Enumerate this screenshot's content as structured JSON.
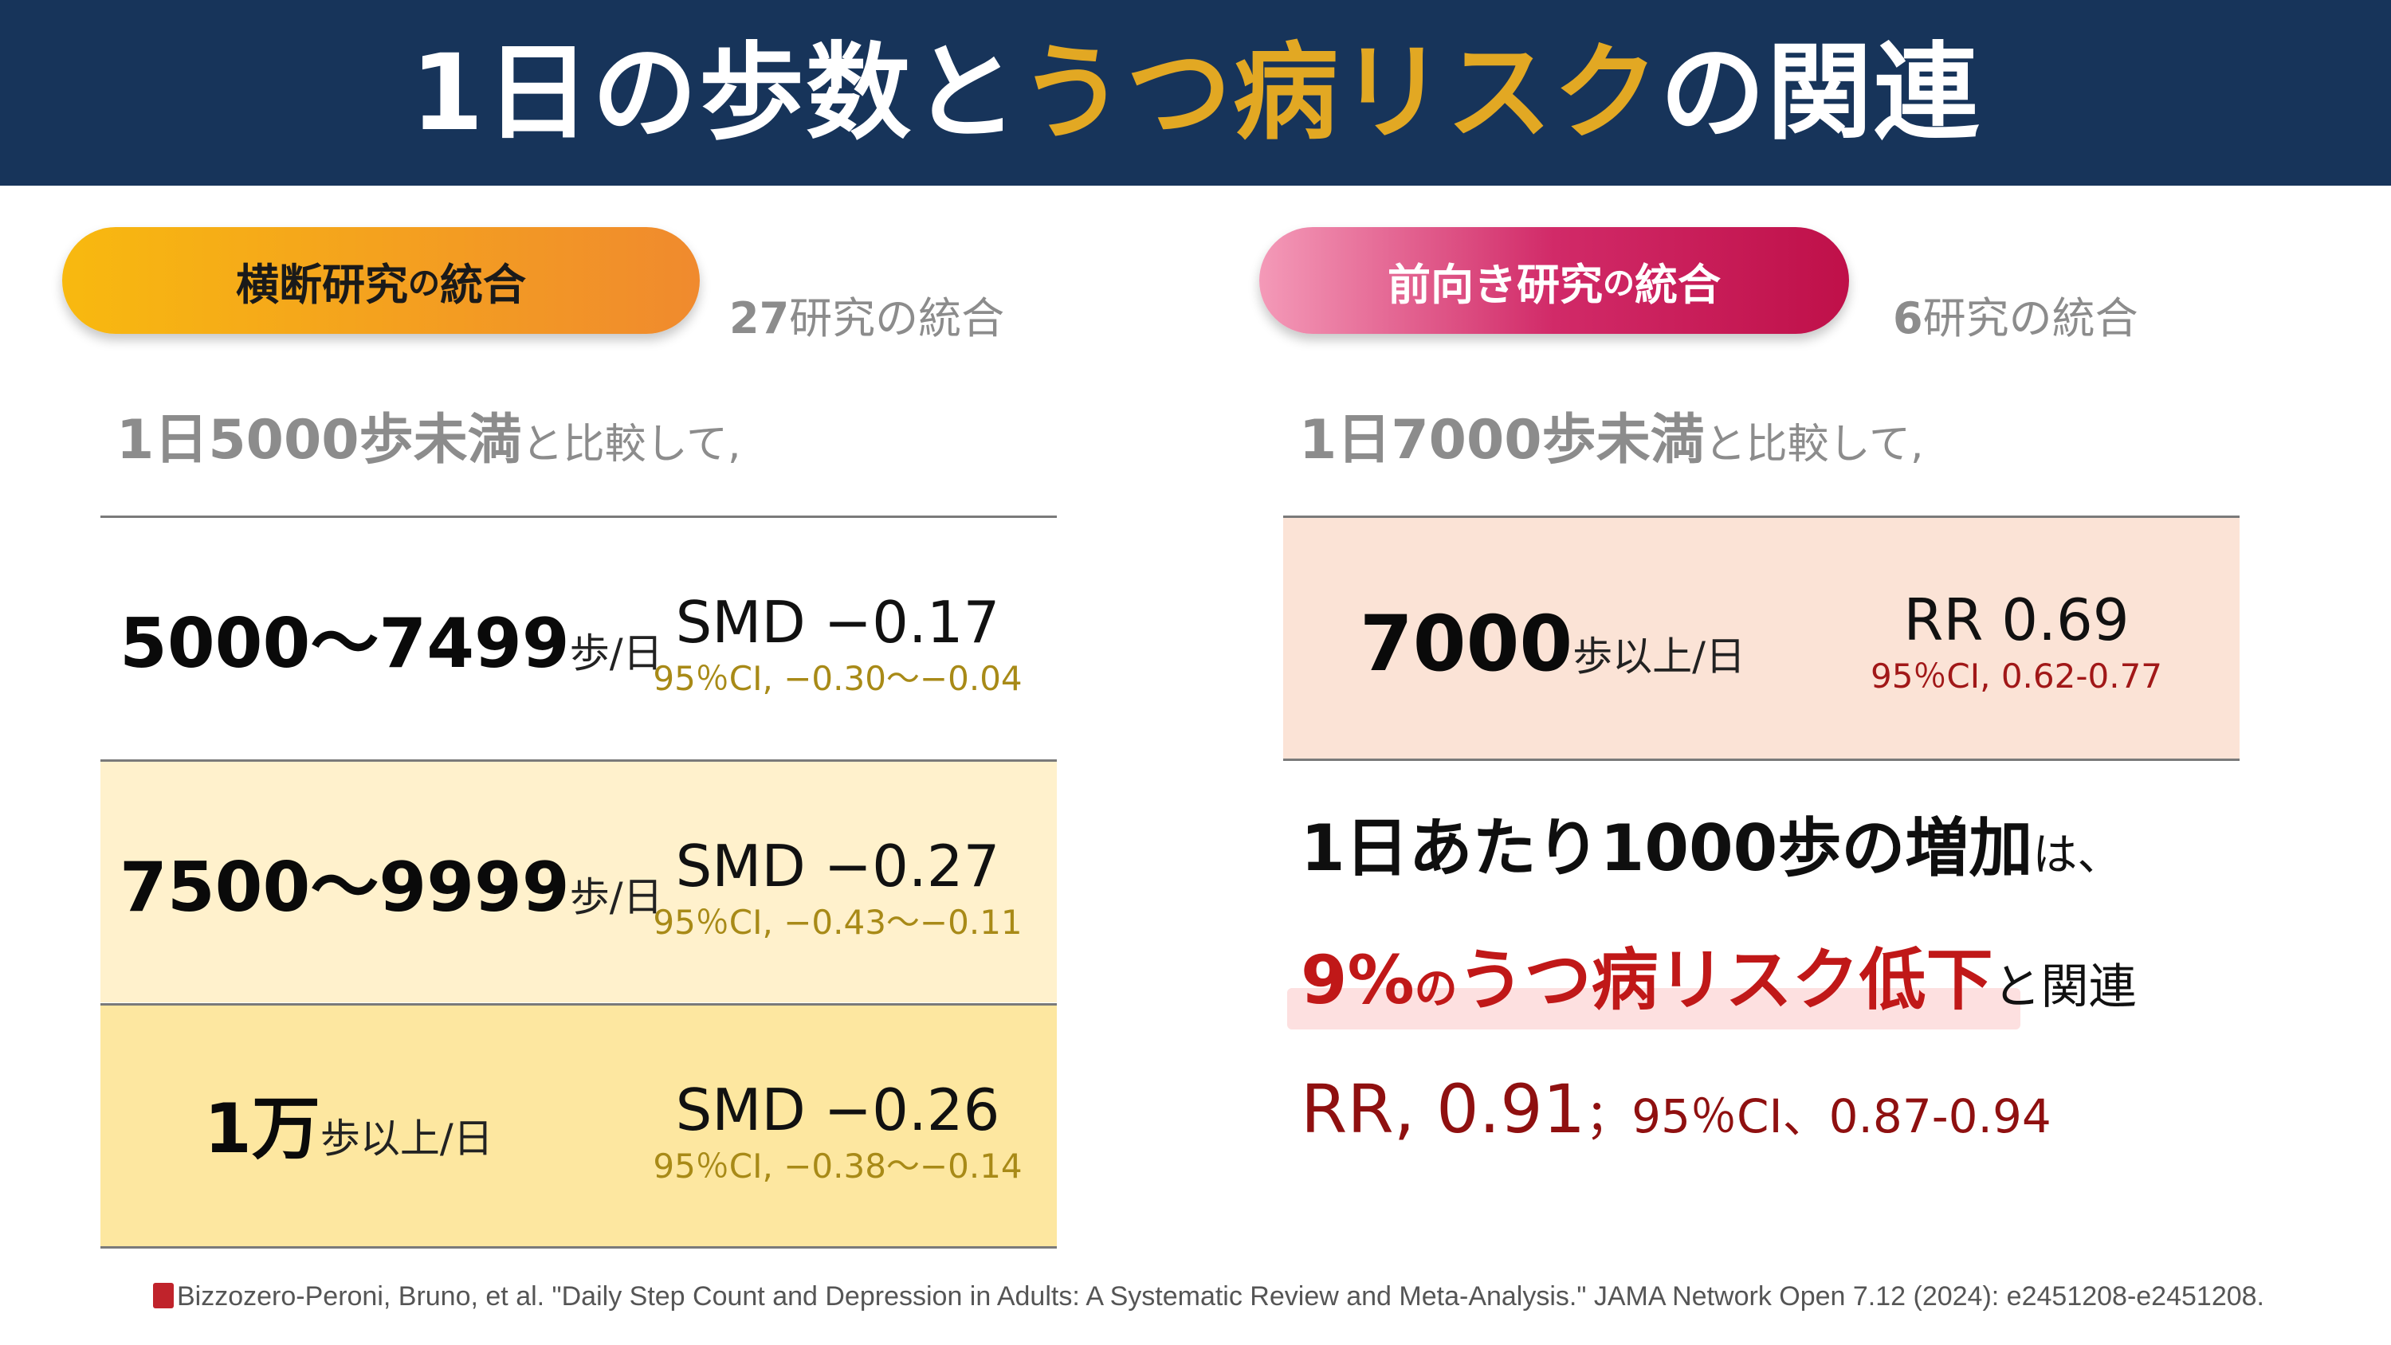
{
  "header": {
    "title_pre": "1日の歩数と",
    "title_highlight": "うつ病リスク",
    "title_post": "の関連",
    "colors": {
      "bg": "#17345a",
      "highlight": "#e2a823"
    }
  },
  "left": {
    "pill_main": "横断研究",
    "pill_small": "の",
    "pill_end": "統合",
    "count_num": "27",
    "count_text": "研究の統合",
    "compare_strong": "1日5000歩未満",
    "compare_weak": "と比較して,",
    "rows": [
      {
        "num": "5000〜7499",
        "unit": "歩/日",
        "value": "SMD −0.17",
        "ci": "95％CI, −0.30〜−0.04"
      },
      {
        "num": "7500〜9999",
        "unit": "歩/日",
        "value": "SMD −0.27",
        "ci": "95％CI, −0.43〜−0.11"
      },
      {
        "num": "1万",
        "unit": "歩以上/日",
        "value": "SMD −0.26",
        "ci": "95％CI, −0.38〜−0.14"
      }
    ]
  },
  "right": {
    "pill_main": "前向き研究",
    "pill_small": "の",
    "pill_end": "統合",
    "count_num": "6",
    "count_text": "研究の統合",
    "compare_strong": "1日7000歩未満",
    "compare_weak": "と比較して,",
    "box": {
      "num": "7000",
      "unit": "歩以上/日",
      "value": "RR 0.69",
      "ci": "95％CI, 0.62-0.77"
    },
    "summary": {
      "line1_strong": "1日あたり1000歩の増加",
      "line1_weak": "は、",
      "line2_a": "9%",
      "line2_b": "の",
      "line2_c": "うつ病リスク低下",
      "line2_weak": "と関連",
      "line3_big": "RR, 0.91",
      "line3_small": "；95％CI、0.87-0.94"
    }
  },
  "citation": "Bizzozero-Peroni, Bruno, et al. \"Daily Step Count and Depression in Adults: A Systematic Review and Meta-Analysis.\" JAMA Network Open 7.12 (2024): e2451208-e2451208.",
  "icons": {
    "citation": "book-icon"
  }
}
